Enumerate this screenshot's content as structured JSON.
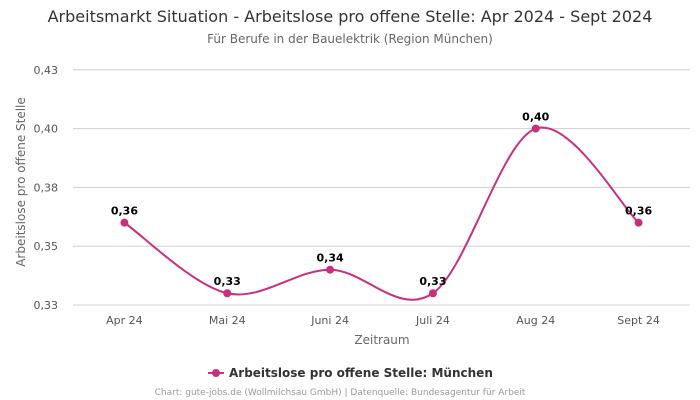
{
  "chart_data": {
    "type": "line",
    "title": "Arbeitsmarkt Situation - Arbeitslose pro offene Stelle: Apr 2024 - Sept 2024",
    "subtitle": "Für Berufe in der Bauelektrik (Region München)",
    "xlabel": "Zeitraum",
    "ylabel": "Arbeitslose pro offene Stelle",
    "categories": [
      "Apr 24",
      "Mai 24",
      "Juni 24",
      "Juli 24",
      "Aug 24",
      "Sept 24"
    ],
    "series": [
      {
        "name": "Arbeitslose pro offene Stelle: München",
        "values": [
          0.36,
          0.33,
          0.34,
          0.33,
          0.4,
          0.36
        ],
        "labels": [
          "0,36",
          "0,33",
          "0,34",
          "0,33",
          "0,40",
          "0,36"
        ],
        "color": "#c8307c"
      }
    ],
    "ylim": [
      0.325,
      0.43
    ],
    "yticks": [
      0.325,
      0.35,
      0.375,
      0.4,
      0.425
    ],
    "ytick_labels": [
      "0,33",
      "0,35",
      "0,38",
      "0,40",
      "0,43"
    ],
    "grid": true,
    "legend": "bottom-center",
    "credits": "Chart: gute-jobs.de (Wollmilchsau GmbH) | Datenquelle: Bundesagentur für Arbeit"
  }
}
